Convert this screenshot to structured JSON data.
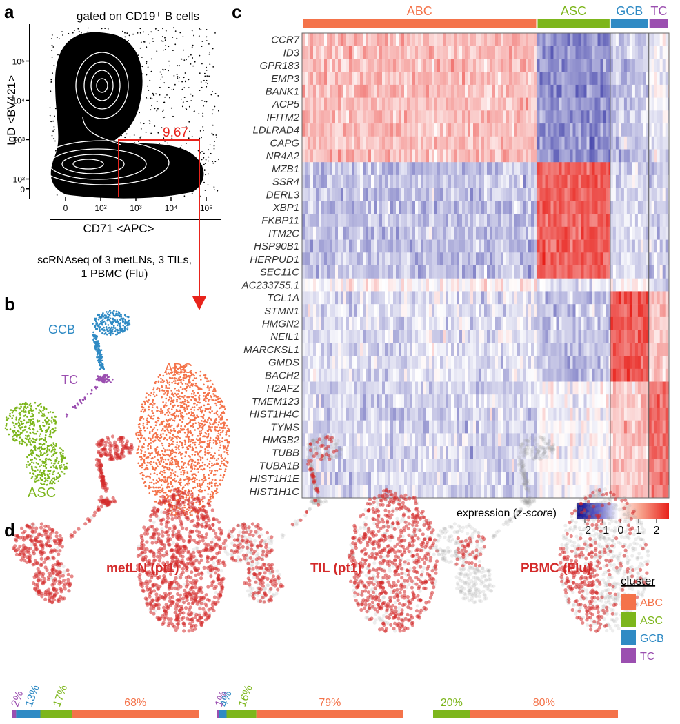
{
  "panels": {
    "a": "a",
    "b": "b",
    "c": "c",
    "d": "d"
  },
  "colors": {
    "ABC": "#f4734a",
    "ASC": "#7db61c",
    "GCB": "#2f8ac4",
    "TC": "#9b4fb0",
    "red": "#e8231b",
    "dot": "#d42a2a",
    "heat_low": "#0a0a8a",
    "heat_mid": "#ffffff",
    "heat_high": "#e8201a"
  },
  "panel_a": {
    "title": "gated on CD19⁺ B cells",
    "ylabel": "IgD <BV421>",
    "xlabel": "CD71 <APC>",
    "gate_value": "9.67",
    "y_ticks": [
      {
        "t": "10⁵",
        "v": 5
      },
      {
        "t": "10⁴",
        "v": 4
      },
      {
        "t": "10³",
        "v": 3
      },
      {
        "t": "10²",
        "v": 2
      },
      {
        "t": "0",
        "v": 1.75
      }
    ],
    "x_ticks": [
      {
        "t": "0",
        "v": 1
      },
      {
        "t": "10²",
        "v": 2
      },
      {
        "t": "10³",
        "v": 3
      },
      {
        "t": "10⁴",
        "v": 4
      },
      {
        "t": "10⁵",
        "v": 5
      }
    ],
    "caption_lines": [
      "scRNAseq of 3 metLNs, 3 TILs,",
      "1 PBMC (Flu)"
    ]
  },
  "panel_b": {
    "labels": [
      "GCB",
      "TC",
      "ABC",
      "ASC"
    ]
  },
  "panel_c": {
    "clusters": [
      {
        "name": "ABC",
        "frac": 0.64
      },
      {
        "name": "ASC",
        "frac": 0.2
      },
      {
        "name": "GCB",
        "frac": 0.105
      },
      {
        "name": "TC",
        "frac": 0.055
      }
    ],
    "genes": [
      "CCR7",
      "ID3",
      "GPR183",
      "EMP3",
      "BANK1",
      "ACP5",
      "IFITM2",
      "LDLRAD4",
      "CAPG",
      "NR4A2",
      "MZB1",
      "SSR4",
      "DERL3",
      "XBP1",
      "FKBP11",
      "ITM2C",
      "HSP90B1",
      "HERPUD1",
      "SEC11C",
      "AC233755.1",
      "TCL1A",
      "STMN1",
      "HMGN2",
      "NEIL1",
      "MARCKSL1",
      "GMDS",
      "BACH2",
      "H2AFZ",
      "TMEM123",
      "HIST1H4C",
      "TYMS",
      "HMGB2",
      "TUBB",
      "TUBA1B",
      "HIST1H1E",
      "HIST1H1C"
    ],
    "legend_title": "expression (",
    "legend_title_italic": "z-score",
    "legend_title_end": ")",
    "legend_ticks": [
      "−2",
      "−1",
      "0",
      "1",
      "2"
    ]
  },
  "panel_d": {
    "samples": [
      {
        "title": "metLN (pt1)",
        "bars": [
          {
            "c": "TC",
            "v": 2,
            "label": "2%"
          },
          {
            "c": "GCB",
            "v": 13,
            "label": "13%"
          },
          {
            "c": "ASC",
            "v": 17,
            "label": "17%"
          },
          {
            "c": "ABC",
            "v": 68,
            "label": "68%"
          }
        ]
      },
      {
        "title": "TIL (pt1)",
        "bars": [
          {
            "c": "TC",
            "v": 1,
            "label": "1%"
          },
          {
            "c": "GCB",
            "v": 4,
            "label": "4%"
          },
          {
            "c": "ASC",
            "v": 16,
            "label": "16%"
          },
          {
            "c": "ABC",
            "v": 79,
            "label": "79%"
          }
        ]
      },
      {
        "title": "PBMC (Flu)",
        "bars": [
          {
            "c": "ASC",
            "v": 20,
            "label": "20%"
          },
          {
            "c": "ABC",
            "v": 80,
            "label": "80%"
          }
        ]
      }
    ],
    "legend_title": "cluster",
    "legend": [
      "ABC",
      "ASC",
      "GCB",
      "TC"
    ]
  }
}
